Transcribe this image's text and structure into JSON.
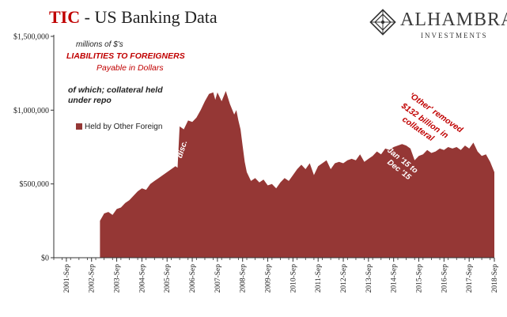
{
  "header": {
    "title_prefix": "TIC",
    "title_rest": " - US Banking Data",
    "logo_name": "ALHAMBRA",
    "logo_sub": "INVESTMENTS"
  },
  "notes": {
    "units": "millions of $'s",
    "liabilities": "LIABILITIES TO FOREIGNERS",
    "payable": "Payable in Dollars",
    "collateral_line1": "of which; collateral held",
    "collateral_line2": "under repo"
  },
  "annotations": {
    "disc": "disc.",
    "other_line1": "'Other' removed",
    "other_line2": "$132 billion in",
    "other_line3": "collateral",
    "jan_line1": "Jan '15 to",
    "jan_line2": "Dec '15"
  },
  "colors": {
    "series": "#953735",
    "title_accent": "#c00000"
  },
  "chart_data": {
    "type": "area",
    "title": "",
    "xlabel": "",
    "ylabel": "",
    "ylim": [
      0,
      1500000
    ],
    "yticks": [
      0,
      500000,
      1000000,
      1500000
    ],
    "ytick_labels": [
      "$0",
      "$500,000",
      "$1,000,000",
      "$1,500,000"
    ],
    "xticks": [
      "2001-Sep",
      "2002-Sep",
      "2003-Sep",
      "2004-Sep",
      "2005-Sep",
      "2006-Sep",
      "2007-Sep",
      "2008-Sep",
      "2009-Sep",
      "2010-Sep",
      "2011-Sep",
      "2012-Sep",
      "2013-Sep",
      "2014-Sep",
      "2015-Sep",
      "2016-Sep",
      "2017-Sep",
      "2018-Sep"
    ],
    "grid": false,
    "legend": "top-left",
    "series": [
      {
        "name": "Held by Other Foreign",
        "points": [
          [
            "2003-Jan",
            0
          ],
          [
            "2003-Jan",
            250000
          ],
          [
            "2003-Mar",
            300000
          ],
          [
            "2003-May",
            310000
          ],
          [
            "2003-Jul",
            290000
          ],
          [
            "2003-Sep",
            330000
          ],
          [
            "2003-Nov",
            340000
          ],
          [
            "2004-Jan",
            370000
          ],
          [
            "2004-Mar",
            390000
          ],
          [
            "2004-May",
            420000
          ],
          [
            "2004-Jul",
            450000
          ],
          [
            "2004-Sep",
            470000
          ],
          [
            "2004-Nov",
            460000
          ],
          [
            "2005-Jan",
            500000
          ],
          [
            "2005-Mar",
            520000
          ],
          [
            "2005-May",
            540000
          ],
          [
            "2005-Jul",
            560000
          ],
          [
            "2005-Sep",
            580000
          ],
          [
            "2005-Nov",
            600000
          ],
          [
            "2006-Jan",
            620000
          ],
          [
            "2006-Feb",
            610000
          ],
          [
            "2006-Mar",
            890000
          ],
          [
            "2006-May",
            870000
          ],
          [
            "2006-Jul",
            930000
          ],
          [
            "2006-Sep",
            920000
          ],
          [
            "2006-Nov",
            950000
          ],
          [
            "2007-Jan",
            1000000
          ],
          [
            "2007-Mar",
            1060000
          ],
          [
            "2007-May",
            1110000
          ],
          [
            "2007-Jul",
            1120000
          ],
          [
            "2007-Aug",
            1070000
          ],
          [
            "2007-Sep",
            1120000
          ],
          [
            "2007-Nov",
            1060000
          ],
          [
            "2008-Jan",
            1130000
          ],
          [
            "2008-Mar",
            1040000
          ],
          [
            "2008-May",
            970000
          ],
          [
            "2008-Jun",
            1000000
          ],
          [
            "2008-Jul",
            930000
          ],
          [
            "2008-Aug",
            870000
          ],
          [
            "2008-Sep",
            760000
          ],
          [
            "2008-Oct",
            650000
          ],
          [
            "2008-Nov",
            580000
          ],
          [
            "2009-Jan",
            520000
          ],
          [
            "2009-Mar",
            540000
          ],
          [
            "2009-May",
            510000
          ],
          [
            "2009-Jul",
            530000
          ],
          [
            "2009-Sep",
            490000
          ],
          [
            "2009-Nov",
            500000
          ],
          [
            "2010-Jan",
            470000
          ],
          [
            "2010-Mar",
            510000
          ],
          [
            "2010-May",
            540000
          ],
          [
            "2010-Jul",
            520000
          ],
          [
            "2010-Sep",
            560000
          ],
          [
            "2010-Nov",
            600000
          ],
          [
            "2011-Jan",
            630000
          ],
          [
            "2011-Mar",
            600000
          ],
          [
            "2011-May",
            640000
          ],
          [
            "2011-Jul",
            560000
          ],
          [
            "2011-Sep",
            620000
          ],
          [
            "2011-Nov",
            640000
          ],
          [
            "2012-Jan",
            660000
          ],
          [
            "2012-Mar",
            600000
          ],
          [
            "2012-May",
            640000
          ],
          [
            "2012-Jul",
            650000
          ],
          [
            "2012-Sep",
            640000
          ],
          [
            "2012-Nov",
            660000
          ],
          [
            "2013-Jan",
            670000
          ],
          [
            "2013-Mar",
            660000
          ],
          [
            "2013-May",
            700000
          ],
          [
            "2013-Jul",
            650000
          ],
          [
            "2013-Sep",
            670000
          ],
          [
            "2013-Nov",
            690000
          ],
          [
            "2014-Jan",
            720000
          ],
          [
            "2014-Mar",
            700000
          ],
          [
            "2014-May",
            740000
          ],
          [
            "2014-Jul",
            730000
          ],
          [
            "2014-Sep",
            750000
          ],
          [
            "2014-Nov",
            760000
          ],
          [
            "2015-Jan",
            770000
          ],
          [
            "2015-Mar",
            760000
          ],
          [
            "2015-May",
            740000
          ],
          [
            "2015-Jul",
            660000
          ],
          [
            "2015-Sep",
            690000
          ],
          [
            "2015-Nov",
            700000
          ],
          [
            "2016-Jan",
            730000
          ],
          [
            "2016-Mar",
            710000
          ],
          [
            "2016-May",
            720000
          ],
          [
            "2016-Jul",
            740000
          ],
          [
            "2016-Sep",
            730000
          ],
          [
            "2016-Nov",
            750000
          ],
          [
            "2017-Jan",
            740000
          ],
          [
            "2017-Mar",
            750000
          ],
          [
            "2017-May",
            730000
          ],
          [
            "2017-Jul",
            760000
          ],
          [
            "2017-Sep",
            740000
          ],
          [
            "2017-Nov",
            780000
          ],
          [
            "2018-Jan",
            720000
          ],
          [
            "2018-Mar",
            690000
          ],
          [
            "2018-May",
            700000
          ],
          [
            "2018-Jul",
            650000
          ],
          [
            "2018-Sep",
            580000
          ],
          [
            "2018-Sep",
            0
          ]
        ]
      }
    ]
  }
}
